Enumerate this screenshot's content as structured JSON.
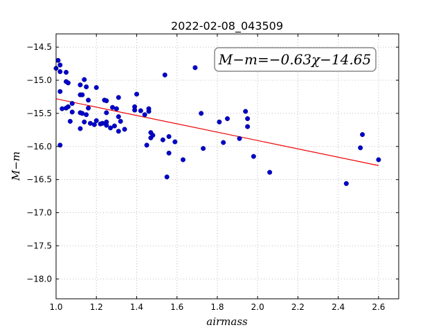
{
  "chart_data": {
    "type": "scatter",
    "title": "2022-02-08_043509",
    "xlabel": "airmass",
    "ylabel": "M−m",
    "xlim": [
      1.0,
      2.7
    ],
    "ylim": [
      -18.3,
      -14.3
    ],
    "y_inverted": false,
    "grid": true,
    "x_ticks": [
      1.0,
      1.2,
      1.4,
      1.6,
      1.8,
      2.0,
      2.2,
      2.4,
      2.6
    ],
    "x_tick_labels": [
      "1.0",
      "1.2",
      "1.4",
      "1.6",
      "1.8",
      "2.0",
      "2.2",
      "2.4",
      "2.6"
    ],
    "y_ticks": [
      -14.5,
      -15.0,
      -15.5,
      -16.0,
      -16.5,
      -17.0,
      -17.5,
      -18.0
    ],
    "y_tick_labels": [
      "−14.5",
      "−15.0",
      "−15.5",
      "−16.0",
      "−16.5",
      "−17.0",
      "−17.5",
      "−18.0"
    ],
    "annotation": "M−m=−0.63χ−14.65",
    "fit": {
      "slope": -0.63,
      "intercept": -14.65,
      "x_range": [
        1.0,
        2.6
      ],
      "color": "#ee0000"
    },
    "point_color": "#0000cc",
    "points": [
      [
        1.0,
        -14.82
      ],
      [
        1.01,
        -14.7
      ],
      [
        1.02,
        -14.77
      ],
      [
        1.02,
        -14.87
      ],
      [
        1.02,
        -15.17
      ],
      [
        1.03,
        -15.43
      ],
      [
        1.02,
        -15.98
      ],
      [
        1.05,
        -15.02
      ],
      [
        1.05,
        -14.88
      ],
      [
        1.06,
        -15.04
      ],
      [
        1.06,
        -15.4
      ],
      [
        1.05,
        -15.42
      ],
      [
        1.07,
        -15.62
      ],
      [
        1.08,
        -15.35
      ],
      [
        1.08,
        -15.48
      ],
      [
        1.12,
        -15.07
      ],
      [
        1.12,
        -15.22
      ],
      [
        1.13,
        -15.22
      ],
      [
        1.12,
        -15.49
      ],
      [
        1.13,
        -15.5
      ],
      [
        1.12,
        -15.73
      ],
      [
        1.14,
        -14.99
      ],
      [
        1.14,
        -15.63
      ],
      [
        1.15,
        -15.1
      ],
      [
        1.15,
        -15.52
      ],
      [
        1.16,
        -15.3
      ],
      [
        1.16,
        -15.42
      ],
      [
        1.17,
        -15.65
      ],
      [
        1.19,
        -15.67
      ],
      [
        1.2,
        -15.11
      ],
      [
        1.2,
        -15.61
      ],
      [
        1.22,
        -15.66
      ],
      [
        1.23,
        -15.65
      ],
      [
        1.24,
        -15.3
      ],
      [
        1.25,
        -15.31
      ],
      [
        1.25,
        -15.63
      ],
      [
        1.25,
        -15.68
      ],
      [
        1.25,
        -15.49
      ],
      [
        1.27,
        -15.72
      ],
      [
        1.28,
        -15.41
      ],
      [
        1.29,
        -15.69
      ],
      [
        1.3,
        -15.43
      ],
      [
        1.31,
        -15.26
      ],
      [
        1.31,
        -15.55
      ],
      [
        1.31,
        -15.77
      ],
      [
        1.32,
        -15.62
      ],
      [
        1.34,
        -15.74
      ],
      [
        1.39,
        -15.4
      ],
      [
        1.39,
        -15.45
      ],
      [
        1.4,
        -15.21
      ],
      [
        1.42,
        -15.46
      ],
      [
        1.44,
        -15.52
      ],
      [
        1.45,
        -15.98
      ],
      [
        1.46,
        -15.43
      ],
      [
        1.46,
        -15.47
      ],
      [
        1.47,
        -15.79
      ],
      [
        1.47,
        -15.87
      ],
      [
        1.48,
        -15.83
      ],
      [
        1.53,
        -15.9
      ],
      [
        1.54,
        -14.92
      ],
      [
        1.55,
        -16.46
      ],
      [
        1.56,
        -16.1
      ],
      [
        1.56,
        -15.85
      ],
      [
        1.59,
        -15.93
      ],
      [
        1.63,
        -16.2
      ],
      [
        1.69,
        -14.81
      ],
      [
        1.72,
        -15.5
      ],
      [
        1.73,
        -16.03
      ],
      [
        1.81,
        -15.63
      ],
      [
        1.83,
        -15.94
      ],
      [
        1.85,
        -15.58
      ],
      [
        1.91,
        -15.88
      ],
      [
        1.94,
        -15.47
      ],
      [
        1.95,
        -15.58
      ],
      [
        1.95,
        -15.7
      ],
      [
        1.98,
        -16.15
      ],
      [
        2.06,
        -16.39
      ],
      [
        2.44,
        -16.56
      ],
      [
        2.51,
        -16.02
      ],
      [
        2.52,
        -15.82
      ],
      [
        2.6,
        -16.2
      ]
    ]
  }
}
